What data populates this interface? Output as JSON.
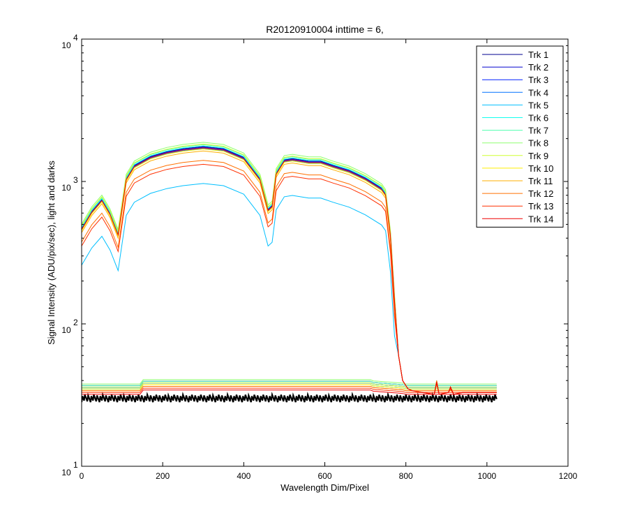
{
  "chart_data": {
    "type": "line",
    "title": "R20120910004 inttime = 6,",
    "xlabel": "Wavelength Dim/Pixel",
    "ylabel": "Signal Intensity (ADU/pix/sec), light and darks",
    "xlim": [
      0,
      1200
    ],
    "ylim": [
      10,
      10000
    ],
    "yscale": "log",
    "grid": false,
    "legend_position": "top-right",
    "x_ticks": [
      0,
      200,
      400,
      600,
      800,
      1000,
      1200
    ],
    "y_ticks": [
      10,
      100,
      1000,
      10000
    ],
    "y_tick_base": "10",
    "y_tick_exponents": [
      "1",
      "2",
      "3",
      "4"
    ],
    "profile_x": [
      0,
      25,
      50,
      70,
      90,
      110,
      130,
      170,
      210,
      250,
      300,
      350,
      400,
      440,
      460,
      470,
      480,
      500,
      520,
      560,
      590,
      620,
      660,
      700,
      740,
      750,
      762,
      772,
      782,
      792,
      805,
      815
    ],
    "series": [
      {
        "name": "Trk 1",
        "color": "#00008F",
        "scale": 1.0,
        "dark": 38
      },
      {
        "name": "Trk 2",
        "color": "#0000CF",
        "scale": 0.98,
        "dark": 37
      },
      {
        "name": "Trk 3",
        "color": "#0020FF",
        "scale": 0.99,
        "dark": 37
      },
      {
        "name": "Trk 4",
        "color": "#0070FF",
        "scale": 0.97,
        "dark": 36
      },
      {
        "name": "Trk 5",
        "color": "#00BFFF",
        "scale": 0.55,
        "dark": 37
      },
      {
        "name": "Trk 6",
        "color": "#10FFEF",
        "scale": 1.01,
        "dark": 36
      },
      {
        "name": "Trk 7",
        "color": "#50FFAF",
        "scale": 1.03,
        "dark": 38
      },
      {
        "name": "Trk 8",
        "color": "#8FFF70",
        "scale": 1.07,
        "dark": 39
      },
      {
        "name": "Trk 9",
        "color": "#CFFF30",
        "scale": 1.04,
        "dark": 37
      },
      {
        "name": "Trk 10",
        "color": "#FFEF00",
        "scale": 0.96,
        "dark": 36
      },
      {
        "name": "Trk 11",
        "color": "#FFAF00",
        "scale": 0.93,
        "dark": 35
      },
      {
        "name": "Trk 12",
        "color": "#FF7000",
        "scale": 0.8,
        "dark": 35
      },
      {
        "name": "Trk 13",
        "color": "#FF3000",
        "scale": 0.75,
        "dark": 34
      },
      {
        "name": "Trk 14",
        "color": "#EF0000",
        "scale": 0.98,
        "dark": 33
      }
    ],
    "profile_y": [
      470,
      620,
      750,
      600,
      430,
      1050,
      1300,
      1500,
      1620,
      1700,
      1760,
      1700,
      1480,
      1050,
      640,
      680,
      1150,
      1420,
      1450,
      1390,
      1390,
      1300,
      1200,
      1060,
      900,
      820,
      420,
      150,
      60,
      40,
      35,
      34
    ],
    "dark_floor": {
      "x_end": 1024,
      "value": 30,
      "color": "#000000"
    }
  }
}
